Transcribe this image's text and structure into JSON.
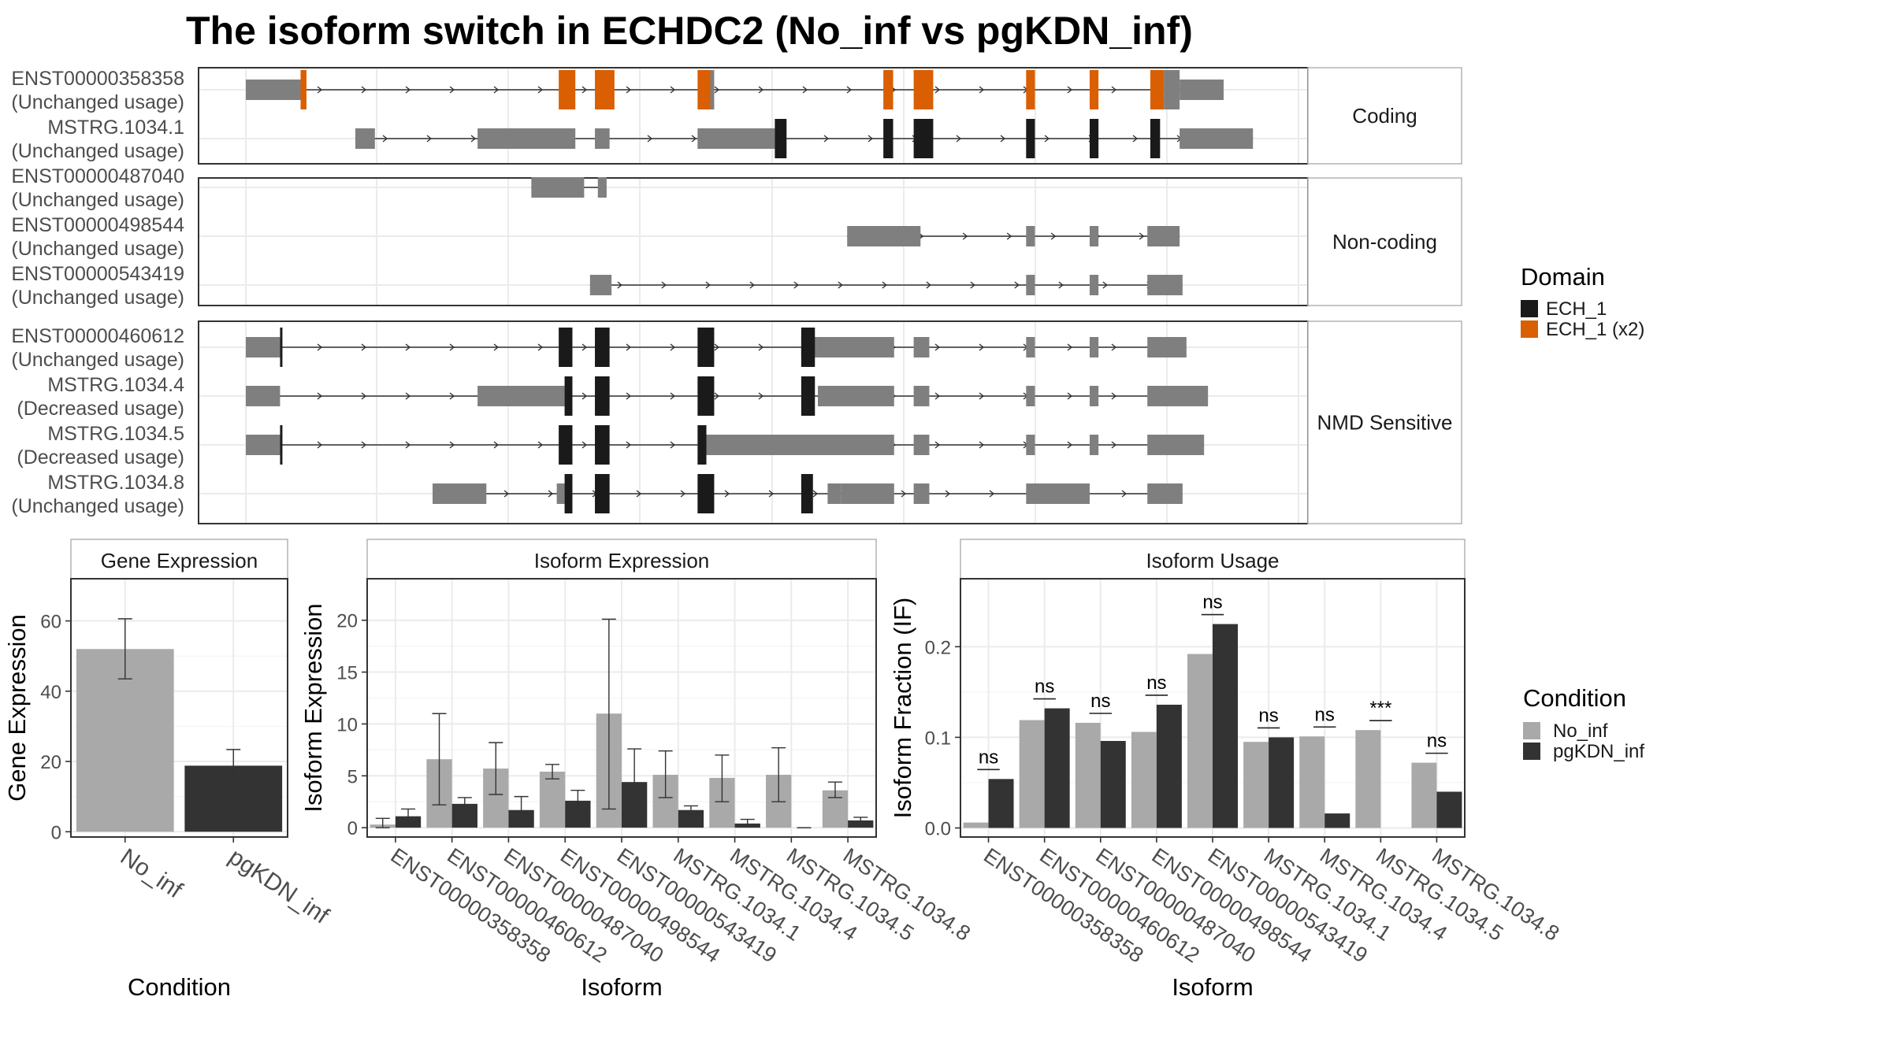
{
  "title": "The isoform switch in ECHDC2 (No_inf vs pgKDN_inf)",
  "colors": {
    "ech1": "#1a1a1a",
    "ech1x2": "#d95f02",
    "noncoding": "#7f7f7f",
    "no_inf": "#a9a9a9",
    "pgkdn_inf": "#333333",
    "grid": "#ebebeb",
    "strip": "#ffffff"
  },
  "structure": {
    "groups": [
      {
        "label": "Coding",
        "isoforms": [
          {
            "id": "ENST00000358358",
            "status": "(Unchanged usage)",
            "utr": [
              [
                0,
                0.056
              ],
              [
                0.955,
                1.0
              ]
            ],
            "cds": [
              [
                0.056,
                0.062,
                "ECH_1 (x2)"
              ],
              [
                0.32,
                0.337,
                "ECH_1 (x2)"
              ],
              [
                0.357,
                0.377,
                "ECH_1 (x2)"
              ],
              [
                0.462,
                0.475,
                "ECH_1 (x2)"
              ],
              [
                0.475,
                0.479,
                "grey"
              ],
              [
                0.652,
                0.662,
                "ECH_1 (x2)"
              ],
              [
                0.683,
                0.703,
                "ECH_1 (x2)"
              ],
              [
                0.798,
                0.807,
                "ECH_1 (x2)"
              ],
              [
                0.863,
                0.872,
                "ECH_1 (x2)"
              ],
              [
                0.925,
                0.939,
                "ECH_1 (x2)"
              ],
              [
                0.939,
                0.955,
                "grey"
              ]
            ],
            "intron": [
              0.0,
              1.0
            ]
          },
          {
            "id": "MSTRG.1034.1",
            "status": "(Unchanged usage)",
            "utr": [
              [
                0.112,
                0.132
              ],
              [
                0.237,
                0.337
              ],
              [
                0.357,
                0.372
              ],
              [
                0.462,
                0.541
              ],
              [
                0.955,
                1.03
              ]
            ],
            "cds": [
              [
                0.541,
                0.553,
                "ECH_1"
              ],
              [
                0.652,
                0.662,
                "ECH_1"
              ],
              [
                0.683,
                0.703,
                "ECH_1"
              ],
              [
                0.798,
                0.807,
                "ECH_1"
              ],
              [
                0.863,
                0.872,
                "ECH_1"
              ],
              [
                0.925,
                0.935,
                "ECH_1"
              ]
            ],
            "intron": [
              0.112,
              1.03
            ]
          }
        ]
      },
      {
        "label": "Non-coding",
        "isoforms": [
          {
            "id": "ENST00000487040",
            "status": "(Unchanged usage)",
            "utr": [
              [
                0.292,
                0.346
              ],
              [
                0.36,
                0.369
              ]
            ],
            "cds": [],
            "intron": [
              0.292,
              0.369
            ]
          },
          {
            "id": "ENST00000498544",
            "status": "(Unchanged usage)",
            "utr": [
              [
                0.615,
                0.69
              ],
              [
                0.798,
                0.807
              ],
              [
                0.863,
                0.872
              ],
              [
                0.922,
                0.955
              ]
            ],
            "cds": [],
            "intron": [
              0.615,
              0.955
            ]
          },
          {
            "id": "ENST00000543419",
            "status": "(Unchanged usage)",
            "utr": [
              [
                0.352,
                0.374
              ],
              [
                0.798,
                0.807
              ],
              [
                0.863,
                0.872
              ],
              [
                0.922,
                0.958
              ]
            ],
            "cds": [],
            "intron": [
              0.352,
              0.958
            ]
          }
        ]
      },
      {
        "label": "NMD Sensitive",
        "isoforms": [
          {
            "id": "ENST00000460612",
            "status": "(Unchanged usage)",
            "utr": [
              [
                0.0,
                0.035
              ],
              [
                0.568,
                0.585
              ],
              [
                0.585,
                0.663
              ],
              [
                0.683,
                0.699
              ],
              [
                0.798,
                0.807
              ],
              [
                0.863,
                0.872
              ],
              [
                0.922,
                0.962
              ]
            ],
            "cds": [
              [
                0.035,
                0.036,
                "ECH_1"
              ],
              [
                0.32,
                0.334,
                "ECH_1"
              ],
              [
                0.357,
                0.372,
                "ECH_1"
              ],
              [
                0.462,
                0.479,
                "ECH_1"
              ],
              [
                0.568,
                0.582,
                "ECH_1"
              ]
            ],
            "intron": [
              0.0,
              0.962
            ]
          },
          {
            "id": "MSTRG.1034.4",
            "status": "(Decreased usage)",
            "utr": [
              [
                0.0,
                0.035
              ],
              [
                0.237,
                0.326
              ],
              [
                0.585,
                0.663
              ],
              [
                0.683,
                0.699
              ],
              [
                0.798,
                0.807
              ],
              [
                0.863,
                0.872
              ],
              [
                0.922,
                0.984
              ]
            ],
            "cds": [
              [
                0.326,
                0.334,
                "ECH_1"
              ],
              [
                0.357,
                0.372,
                "ECH_1"
              ],
              [
                0.462,
                0.479,
                "ECH_1"
              ],
              [
                0.568,
                0.582,
                "ECH_1"
              ]
            ],
            "intron": [
              0.0,
              0.984
            ]
          },
          {
            "id": "MSTRG.1034.5",
            "status": "(Decreased usage)",
            "utr": [
              [
                0.0,
                0.035
              ],
              [
                0.471,
                0.663
              ],
              [
                0.683,
                0.699
              ],
              [
                0.798,
                0.807
              ],
              [
                0.863,
                0.872
              ],
              [
                0.922,
                0.98
              ]
            ],
            "cds": [
              [
                0.035,
                0.036,
                "ECH_1"
              ],
              [
                0.32,
                0.334,
                "ECH_1"
              ],
              [
                0.357,
                0.372,
                "ECH_1"
              ],
              [
                0.462,
                0.471,
                "ECH_1"
              ]
            ],
            "intron": [
              0.0,
              0.98
            ]
          },
          {
            "id": "MSTRG.1034.8",
            "status": "(Unchanged usage)",
            "utr": [
              [
                0.191,
                0.246
              ],
              [
                0.318,
                0.326
              ],
              [
                0.595,
                0.609
              ],
              [
                0.609,
                0.663
              ],
              [
                0.683,
                0.699
              ],
              [
                0.798,
                0.863
              ],
              [
                0.922,
                0.958
              ]
            ],
            "cds": [
              [
                0.326,
                0.334,
                "ECH_1"
              ],
              [
                0.357,
                0.372,
                "ECH_1"
              ],
              [
                0.462,
                0.479,
                "ECH_1"
              ],
              [
                0.568,
                0.58,
                "ECH_1"
              ]
            ],
            "intron": [
              0.191,
              0.958
            ]
          }
        ]
      }
    ],
    "legend": {
      "title": "Domain",
      "items": [
        "ECH_1",
        "ECH_1 (x2)"
      ]
    }
  },
  "chart_data": [
    {
      "type": "bar",
      "title": "Gene Expression",
      "xlabel": "Condition",
      "ylabel": "Gene Expression",
      "categories": [
        "No_inf",
        "pgKDN_inf"
      ],
      "values": [
        52,
        18.8
      ],
      "error_low": [
        43.5,
        14.3
      ],
      "error_high": [
        60.6,
        23.4
      ],
      "ylim": [
        -1.5,
        72
      ],
      "yticks": [
        0,
        20,
        40,
        60
      ]
    },
    {
      "type": "bar",
      "title": "Isoform Expression",
      "xlabel": "Isoform",
      "ylabel": "Isoform Expression",
      "categories": [
        "ENST00000358358",
        "ENST00000460612",
        "ENST00000487040",
        "ENST00000498544",
        "ENST00000543419",
        "MSTRG.1034.1",
        "MSTRG.1034.4",
        "MSTRG.1034.5",
        "MSTRG.1034.8"
      ],
      "series": [
        {
          "name": "No_inf",
          "values": [
            0.3,
            6.6,
            5.7,
            5.4,
            11.0,
            5.1,
            4.8,
            5.1,
            3.6
          ],
          "error_low": [
            0.0,
            2.2,
            3.2,
            4.7,
            1.8,
            2.9,
            2.5,
            2.5,
            2.9
          ],
          "error_high": [
            0.9,
            11.0,
            8.2,
            6.1,
            20.1,
            7.4,
            7.0,
            7.7,
            4.4
          ]
        },
        {
          "name": "pgKDN_inf",
          "values": [
            1.1,
            2.3,
            1.7,
            2.6,
            4.4,
            1.7,
            0.4,
            0.0,
            0.7
          ],
          "error_low": [
            0.4,
            1.7,
            0.1,
            1.6,
            0.9,
            1.3,
            0.1,
            0.0,
            0.5
          ],
          "error_high": [
            1.8,
            2.9,
            3.0,
            3.6,
            7.6,
            2.1,
            0.8,
            0.0,
            1.0
          ]
        }
      ],
      "ylim": [
        -0.9,
        24
      ],
      "yticks": [
        0,
        5,
        10,
        15,
        20
      ]
    },
    {
      "type": "bar",
      "title": "Isoform Usage",
      "xlabel": "Isoform",
      "ylabel": "Isoform Fraction (IF)",
      "categories": [
        "ENST00000358358",
        "ENST00000460612",
        "ENST00000487040",
        "ENST00000498544",
        "ENST00000543419",
        "MSTRG.1034.1",
        "MSTRG.1034.4",
        "MSTRG.1034.5",
        "MSTRG.1034.8"
      ],
      "series": [
        {
          "name": "No_inf",
          "values": [
            0.006,
            0.119,
            0.116,
            0.106,
            0.192,
            0.095,
            0.101,
            0.108,
            0.072
          ]
        },
        {
          "name": "pgKDN_inf",
          "values": [
            0.054,
            0.132,
            0.096,
            0.136,
            0.225,
            0.1,
            0.016,
            0.0,
            0.04
          ]
        }
      ],
      "significance": [
        "ns",
        "ns",
        "ns",
        "ns",
        "ns",
        "ns",
        "ns",
        "***",
        "ns"
      ],
      "ylim": [
        -0.01,
        0.275
      ],
      "yticks": [
        0.0,
        0.1,
        0.2
      ],
      "ytick_labels": [
        "0.0",
        "0.1",
        "0.2"
      ]
    }
  ],
  "condition_legend": {
    "title": "Condition",
    "items": [
      "No_inf",
      "pgKDN_inf"
    ]
  }
}
